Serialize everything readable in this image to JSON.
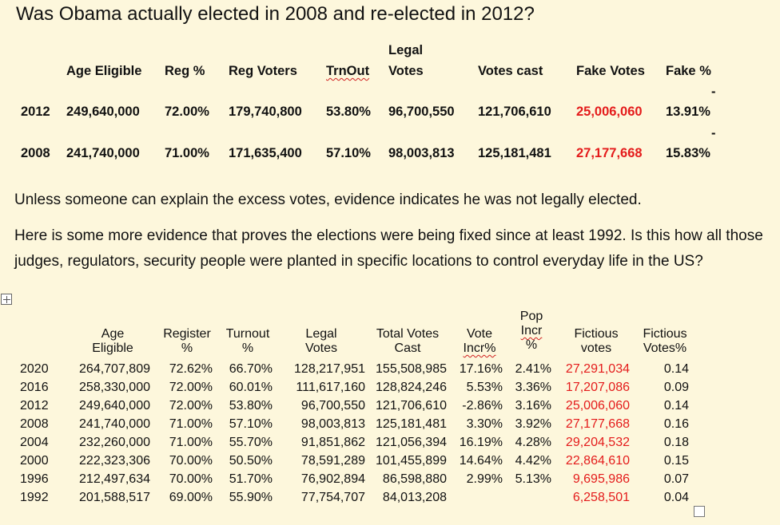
{
  "title": "Was Obama actually elected in 2008 and re-elected in 2012?",
  "table1": {
    "headers": {
      "age_eligible": "Age Eligible",
      "reg_pct": "Reg %",
      "reg_voters": "Reg Voters",
      "trnout": "TrnOut",
      "legal_line1": "Legal",
      "legal_line2": "Votes",
      "votes_cast": "Votes cast",
      "fake_votes": "Fake Votes",
      "fake_pct": "Fake %"
    },
    "rows": [
      {
        "year": "2012",
        "age_eligible": "249,640,000",
        "reg_pct": "72.00%",
        "reg_voters": "179,740,800",
        "trnout": "53.80%",
        "legal_votes": "96,700,550",
        "votes_cast": "121,706,610",
        "fake_votes": "25,006,060",
        "fake_pct": "13.91%",
        "dash": "-"
      },
      {
        "year": "2008",
        "age_eligible": "241,740,000",
        "reg_pct": "71.00%",
        "reg_voters": "171,635,400",
        "trnout": "57.10%",
        "legal_votes": "98,003,813",
        "votes_cast": "125,181,481",
        "fake_votes": "27,177,668",
        "fake_pct": "15.83%",
        "dash": "-"
      }
    ]
  },
  "paragraphs": [
    "Unless someone can explain the excess votes, evidence indicates he was not legally elected.",
    "Here is some more evidence that proves the elections were being fixed since at least 1992. Is this how all those judges, regulators, security people were planted in specific locations to control everyday life in the US?"
  ],
  "table2": {
    "headers": {
      "age": [
        "Age",
        "Eligible"
      ],
      "register": [
        "Register",
        "%"
      ],
      "turnout": [
        "Turnout",
        "%"
      ],
      "legal": [
        "Legal",
        "Votes"
      ],
      "total": [
        "Total Votes",
        "Cast"
      ],
      "vote_incr": [
        "Vote",
        "Incr%"
      ],
      "pop_incr": [
        "Pop",
        "Incr",
        "%"
      ],
      "fict_votes": [
        "Fictious",
        "votes"
      ],
      "fict_pct": [
        "Fictious",
        "Votes%"
      ]
    },
    "rows": [
      {
        "year": "2020",
        "age": "264,707,809",
        "register": "72.62%",
        "turnout": "66.70%",
        "legal": "128,217,951",
        "total": "155,508,985",
        "vote_incr": "17.16%",
        "pop_incr": "2.41%",
        "fict_votes": "27,291,034",
        "fict_pct": "0.14"
      },
      {
        "year": "2016",
        "age": "258,330,000",
        "register": "72.00%",
        "turnout": "60.01%",
        "legal": "111,617,160",
        "total": "128,824,246",
        "vote_incr": "5.53%",
        "pop_incr": "3.36%",
        "fict_votes": "17,207,086",
        "fict_pct": "0.09"
      },
      {
        "year": "2012",
        "age": "249,640,000",
        "register": "72.00%",
        "turnout": "53.80%",
        "legal": "96,700,550",
        "total": "121,706,610",
        "vote_incr": "-2.86%",
        "pop_incr": "3.16%",
        "fict_votes": "25,006,060",
        "fict_pct": "0.14"
      },
      {
        "year": "2008",
        "age": "241,740,000",
        "register": "71.00%",
        "turnout": "57.10%",
        "legal": "98,003,813",
        "total": "125,181,481",
        "vote_incr": "3.30%",
        "pop_incr": "3.92%",
        "fict_votes": "27,177,668",
        "fict_pct": "0.16"
      },
      {
        "year": "2004",
        "age": "232,260,000",
        "register": "71.00%",
        "turnout": "55.70%",
        "legal": "91,851,862",
        "total": "121,056,394",
        "vote_incr": "16.19%",
        "pop_incr": "4.28%",
        "fict_votes": "29,204,532",
        "fict_pct": "0.18"
      },
      {
        "year": "2000",
        "age": "222,323,306",
        "register": "70.00%",
        "turnout": "50.50%",
        "legal": "78,591,289",
        "total": "101,455,899",
        "vote_incr": "14.64%",
        "pop_incr": "4.42%",
        "fict_votes": "22,864,610",
        "fict_pct": "0.15"
      },
      {
        "year": "1996",
        "age": "212,497,634",
        "register": "70.00%",
        "turnout": "51.70%",
        "legal": "76,902,894",
        "total": "86,598,880",
        "vote_incr": "2.99%",
        "pop_incr": "5.13%",
        "fict_votes": "9,695,986",
        "fict_pct": "0.07"
      },
      {
        "year": "1992",
        "age": "201,588,517",
        "register": "69.00%",
        "turnout": "55.90%",
        "legal": "77,754,707",
        "total": "84,013,208",
        "vote_incr": "",
        "pop_incr": "",
        "fict_votes": "6,258,501",
        "fict_pct": "0.04"
      }
    ]
  }
}
